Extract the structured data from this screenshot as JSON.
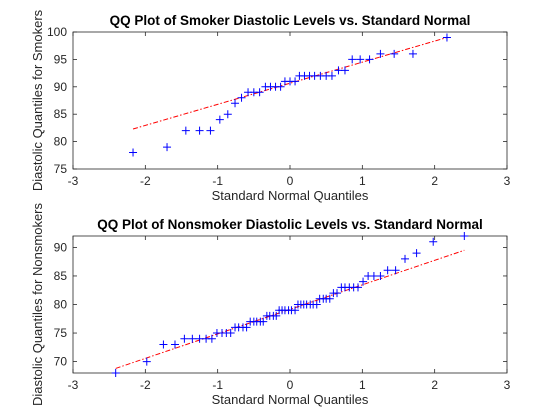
{
  "chart_data": [
    {
      "type": "scatter",
      "title": "QQ Plot of Smoker Diastolic Levels vs. Standard Normal",
      "xlabel": "Standard Normal Quantiles",
      "ylabel": "Diastolic Quantiles for Smokers",
      "xlim": [
        -3,
        3
      ],
      "ylim": [
        75,
        100
      ],
      "xticks": [
        "-3",
        "-2",
        "-1",
        "0",
        "1",
        "2",
        "3"
      ],
      "yticks": [
        "75",
        "80",
        "85",
        "90",
        "95",
        "100"
      ],
      "grid": false,
      "marker": "+",
      "marker_color": "#0000ff",
      "line_color": "#ff0000",
      "reference_line": {
        "x": [
          -2.17,
          2.17
        ],
        "y": [
          82.3,
          99.0
        ]
      },
      "points": [
        {
          "x": -2.17,
          "y": 78
        },
        {
          "x": -1.7,
          "y": 79
        },
        {
          "x": -1.44,
          "y": 82
        },
        {
          "x": -1.25,
          "y": 82
        },
        {
          "x": -1.1,
          "y": 82
        },
        {
          "x": -0.97,
          "y": 84
        },
        {
          "x": -0.86,
          "y": 85
        },
        {
          "x": -0.76,
          "y": 87
        },
        {
          "x": -0.67,
          "y": 88
        },
        {
          "x": -0.58,
          "y": 89
        },
        {
          "x": -0.5,
          "y": 89
        },
        {
          "x": -0.42,
          "y": 89
        },
        {
          "x": -0.34,
          "y": 90
        },
        {
          "x": -0.27,
          "y": 90
        },
        {
          "x": -0.2,
          "y": 90
        },
        {
          "x": -0.13,
          "y": 90
        },
        {
          "x": -0.07,
          "y": 91
        },
        {
          "x": 0.0,
          "y": 91
        },
        {
          "x": 0.07,
          "y": 91
        },
        {
          "x": 0.13,
          "y": 92
        },
        {
          "x": 0.2,
          "y": 92
        },
        {
          "x": 0.27,
          "y": 92
        },
        {
          "x": 0.34,
          "y": 92
        },
        {
          "x": 0.42,
          "y": 92
        },
        {
          "x": 0.5,
          "y": 92
        },
        {
          "x": 0.58,
          "y": 92
        },
        {
          "x": 0.67,
          "y": 93
        },
        {
          "x": 0.76,
          "y": 93
        },
        {
          "x": 0.86,
          "y": 95
        },
        {
          "x": 0.97,
          "y": 95
        },
        {
          "x": 1.1,
          "y": 95
        },
        {
          "x": 1.25,
          "y": 96
        },
        {
          "x": 1.44,
          "y": 96
        },
        {
          "x": 1.7,
          "y": 96
        },
        {
          "x": 2.17,
          "y": 99
        }
      ]
    },
    {
      "type": "scatter",
      "title": "QQ Plot of Nonsmoker Diastolic Levels vs. Standard Normal",
      "xlabel": "Standard Normal Quantiles",
      "ylabel": "Diastolic Quantiles for Nonsmokers",
      "xlim": [
        -3,
        3
      ],
      "ylim": [
        68,
        92
      ],
      "xticks": [
        "-3",
        "-2",
        "-1",
        "0",
        "1",
        "2",
        "3"
      ],
      "yticks": [
        "70",
        "75",
        "80",
        "85",
        "90"
      ],
      "grid": false,
      "marker": "+",
      "marker_color": "#0000ff",
      "line_color": "#ff0000",
      "reference_line": {
        "x": [
          -2.41,
          2.41
        ],
        "y": [
          68.8,
          89.5
        ]
      },
      "points": [
        {
          "x": -2.41,
          "y": 68
        },
        {
          "x": -1.98,
          "y": 70
        },
        {
          "x": -1.75,
          "y": 73
        },
        {
          "x": -1.59,
          "y": 73
        },
        {
          "x": -1.46,
          "y": 74
        },
        {
          "x": -1.35,
          "y": 74
        },
        {
          "x": -1.25,
          "y": 74
        },
        {
          "x": -1.16,
          "y": 74
        },
        {
          "x": -1.08,
          "y": 74
        },
        {
          "x": -1.01,
          "y": 75
        },
        {
          "x": -0.94,
          "y": 75
        },
        {
          "x": -0.88,
          "y": 75
        },
        {
          "x": -0.82,
          "y": 75
        },
        {
          "x": -0.76,
          "y": 76
        },
        {
          "x": -0.71,
          "y": 76
        },
        {
          "x": -0.65,
          "y": 76
        },
        {
          "x": -0.6,
          "y": 76
        },
        {
          "x": -0.55,
          "y": 77
        },
        {
          "x": -0.5,
          "y": 77
        },
        {
          "x": -0.46,
          "y": 77
        },
        {
          "x": -0.41,
          "y": 77
        },
        {
          "x": -0.37,
          "y": 77
        },
        {
          "x": -0.32,
          "y": 78
        },
        {
          "x": -0.28,
          "y": 78
        },
        {
          "x": -0.23,
          "y": 78
        },
        {
          "x": -0.19,
          "y": 78
        },
        {
          "x": -0.15,
          "y": 79
        },
        {
          "x": -0.11,
          "y": 79
        },
        {
          "x": -0.07,
          "y": 79
        },
        {
          "x": -0.02,
          "y": 79
        },
        {
          "x": 0.02,
          "y": 79
        },
        {
          "x": 0.07,
          "y": 79
        },
        {
          "x": 0.11,
          "y": 80
        },
        {
          "x": 0.15,
          "y": 80
        },
        {
          "x": 0.19,
          "y": 80
        },
        {
          "x": 0.23,
          "y": 80
        },
        {
          "x": 0.28,
          "y": 80
        },
        {
          "x": 0.32,
          "y": 80
        },
        {
          "x": 0.37,
          "y": 80
        },
        {
          "x": 0.41,
          "y": 81
        },
        {
          "x": 0.46,
          "y": 81
        },
        {
          "x": 0.5,
          "y": 81
        },
        {
          "x": 0.55,
          "y": 81
        },
        {
          "x": 0.6,
          "y": 82
        },
        {
          "x": 0.65,
          "y": 82
        },
        {
          "x": 0.71,
          "y": 83
        },
        {
          "x": 0.76,
          "y": 83
        },
        {
          "x": 0.82,
          "y": 83
        },
        {
          "x": 0.88,
          "y": 83
        },
        {
          "x": 0.94,
          "y": 83
        },
        {
          "x": 1.01,
          "y": 84
        },
        {
          "x": 1.08,
          "y": 85
        },
        {
          "x": 1.16,
          "y": 85
        },
        {
          "x": 1.25,
          "y": 85
        },
        {
          "x": 1.35,
          "y": 86
        },
        {
          "x": 1.46,
          "y": 86
        },
        {
          "x": 1.59,
          "y": 88
        },
        {
          "x": 1.75,
          "y": 89
        },
        {
          "x": 1.98,
          "y": 91
        },
        {
          "x": 2.41,
          "y": 92
        }
      ]
    }
  ]
}
